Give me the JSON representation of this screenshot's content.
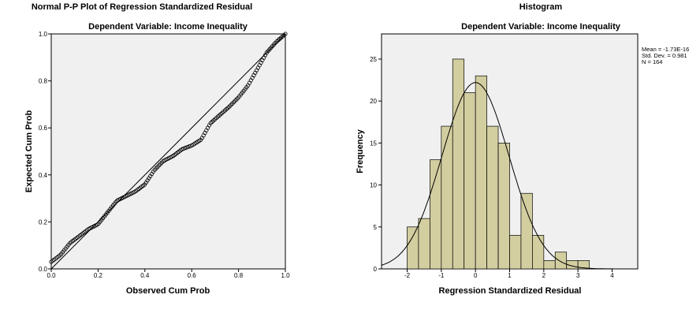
{
  "chart_data": [
    {
      "type": "scatter",
      "title": "Normal P-P Plot of Regression Standardized Residual",
      "subtitle": "Dependent Variable: Income Inequality",
      "xlabel": "Observed Cum Prob",
      "ylabel": "Expected Cum Prob",
      "xlim": [
        0,
        1
      ],
      "ylim": [
        0,
        1
      ],
      "x_ticks": [
        "0.0",
        "0.2",
        "0.4",
        "0.6",
        "0.8",
        "1.0"
      ],
      "y_ticks": [
        "0.0",
        "0.2",
        "0.4",
        "0.6",
        "0.8",
        "1.0"
      ],
      "reference_line": [
        [
          0,
          0
        ],
        [
          1,
          1
        ]
      ],
      "curve_knots": [
        [
          0.0,
          0.03
        ],
        [
          0.04,
          0.06
        ],
        [
          0.08,
          0.11
        ],
        [
          0.12,
          0.14
        ],
        [
          0.16,
          0.17
        ],
        [
          0.2,
          0.19
        ],
        [
          0.24,
          0.24
        ],
        [
          0.28,
          0.29
        ],
        [
          0.32,
          0.31
        ],
        [
          0.36,
          0.33
        ],
        [
          0.4,
          0.36
        ],
        [
          0.44,
          0.42
        ],
        [
          0.48,
          0.46
        ],
        [
          0.52,
          0.48
        ],
        [
          0.56,
          0.51
        ],
        [
          0.6,
          0.525
        ],
        [
          0.64,
          0.55
        ],
        [
          0.68,
          0.62
        ],
        [
          0.72,
          0.655
        ],
        [
          0.76,
          0.69
        ],
        [
          0.8,
          0.73
        ],
        [
          0.84,
          0.78
        ],
        [
          0.88,
          0.85
        ],
        [
          0.92,
          0.92
        ],
        [
          0.96,
          0.965
        ],
        [
          1.0,
          1.0
        ]
      ],
      "n_points": 164,
      "background": "#f0f0f0",
      "marker_color": "#000000"
    },
    {
      "type": "bar",
      "title": "Histogram",
      "subtitle": "Dependent Variable: Income Inequality",
      "xlabel": "Regression Standardized Residual",
      "ylabel": "Frequency",
      "xlim": [
        -2.75,
        4.75
      ],
      "ylim": [
        0,
        28
      ],
      "x_ticks": [
        "-2",
        "-1",
        "0",
        "1",
        "2",
        "3",
        "4"
      ],
      "y_ticks": [
        "0",
        "5",
        "10",
        "15",
        "20",
        "25"
      ],
      "bin_width": 0.333,
      "bins": [
        {
          "start": -2.0,
          "value": 5
        },
        {
          "start": -1.667,
          "value": 6
        },
        {
          "start": -1.333,
          "value": 13
        },
        {
          "start": -1.0,
          "value": 17
        },
        {
          "start": -0.667,
          "value": 25
        },
        {
          "start": -0.333,
          "value": 21
        },
        {
          "start": 0.0,
          "value": 23
        },
        {
          "start": 0.333,
          "value": 17
        },
        {
          "start": 0.667,
          "value": 15
        },
        {
          "start": 1.0,
          "value": 4
        },
        {
          "start": 1.333,
          "value": 9
        },
        {
          "start": 1.667,
          "value": 4
        },
        {
          "start": 2.0,
          "value": 1
        },
        {
          "start": 2.333,
          "value": 2
        },
        {
          "start": 2.667,
          "value": 1
        },
        {
          "start": 3.0,
          "value": 1
        }
      ],
      "normal_curve": {
        "mean": 0.0,
        "sd": 0.981,
        "n": 164
      },
      "stats": [
        "Mean = -1.73E-16",
        "Std. Dev. = 0.981",
        "N = 164"
      ],
      "bar_color": "#d3cea0",
      "background": "#f0f0f0"
    }
  ]
}
